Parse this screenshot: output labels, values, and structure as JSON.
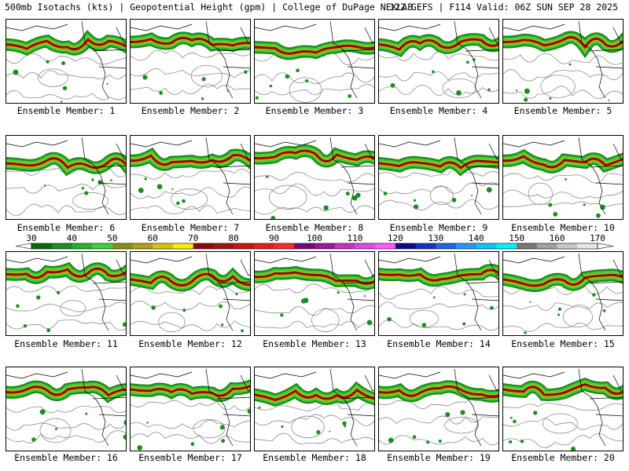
{
  "header": {
    "left": "500mb Isotachs (kts) | Geopotential Height (gpm) | College of DuPage NEXLAB",
    "right": "12Z GEFS | F114 Valid: 06Z SUN SEP 28 2025"
  },
  "member_label_prefix": "Ensemble Member:",
  "members": [
    {
      "label": "Ensemble Member: 1"
    },
    {
      "label": "Ensemble Member: 2"
    },
    {
      "label": "Ensemble Member: 3"
    },
    {
      "label": "Ensemble Member: 4"
    },
    {
      "label": "Ensemble Member: 5"
    },
    {
      "label": "Ensemble Member: 6"
    },
    {
      "label": "Ensemble Member: 7"
    },
    {
      "label": "Ensemble Member: 8"
    },
    {
      "label": "Ensemble Member: 9"
    },
    {
      "label": "Ensemble Member: 10"
    },
    {
      "label": "Ensemble Member: 11"
    },
    {
      "label": "Ensemble Member: 12"
    },
    {
      "label": "Ensemble Member: 13"
    },
    {
      "label": "Ensemble Member: 14"
    },
    {
      "label": "Ensemble Member: 15"
    },
    {
      "label": "Ensemble Member: 16"
    },
    {
      "label": "Ensemble Member: 17"
    },
    {
      "label": "Ensemble Member: 18"
    },
    {
      "label": "Ensemble Member: 19"
    },
    {
      "label": "Ensemble Member: 20"
    }
  ],
  "colorbar": {
    "tick_labels": [
      "30",
      "40",
      "50",
      "60",
      "70",
      "80",
      "90",
      "100",
      "110",
      "120",
      "130",
      "140",
      "150",
      "160",
      "170"
    ],
    "colors": [
      "#0a6a0a",
      "#1e8c1e",
      "#22b422",
      "#3cd23c",
      "#8c8c14",
      "#b4a014",
      "#d2c800",
      "#f0f000",
      "#8c0a0a",
      "#a01414",
      "#c81414",
      "#e61e1e",
      "#ff2828",
      "#780a78",
      "#a014a0",
      "#c832c8",
      "#e646e6",
      "#ff5aff",
      "#0a0a8c",
      "#1432c8",
      "#1e64e6",
      "#2896ff",
      "#00c8ff",
      "#00f0ff",
      "#787878",
      "#a0a0a0",
      "#c8c8c8",
      "#e6e6e6"
    ]
  },
  "map_style": {
    "coast_color": "#000000",
    "height_contour_color": "#8c8c8c",
    "jet_colors": [
      "#1e8c1e",
      "#3cd23c",
      "#c8b400",
      "#8c0a0a"
    ]
  }
}
